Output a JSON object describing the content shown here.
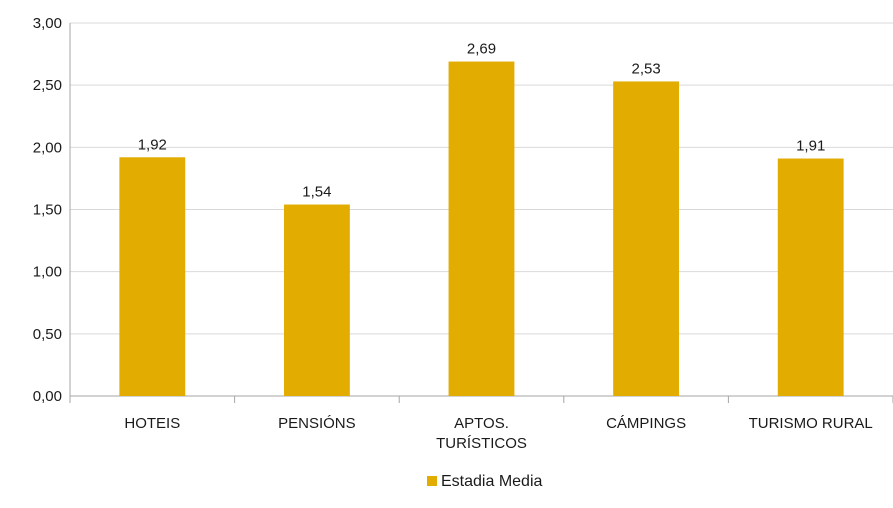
{
  "chart_data": {
    "type": "bar",
    "categories": [
      [
        "HOTEIS"
      ],
      [
        "PENSIÓNS"
      ],
      [
        "APTOS.",
        "TURÍSTICOS"
      ],
      [
        "CÁMPINGS"
      ],
      [
        "TURISMO RURAL"
      ]
    ],
    "series": [
      {
        "name": "Estadia Media",
        "values": [
          1.92,
          1.54,
          2.69,
          2.53,
          1.91
        ],
        "value_labels": [
          "1,92",
          "1,54",
          "2,69",
          "2,53",
          "1,91"
        ],
        "color": "#E2AC00"
      }
    ],
    "ylim": [
      0,
      3
    ],
    "yticks": [
      0,
      0.5,
      1,
      1.5,
      2,
      2.5,
      3
    ],
    "ytick_labels": [
      "0,00",
      "0,50",
      "1,00",
      "1,50",
      "2,00",
      "2,50",
      "3,00"
    ],
    "grid": true,
    "gridline_color": "#d9d9d9",
    "legend_position": "bottom",
    "title": "",
    "xlabel": "",
    "ylabel": ""
  }
}
